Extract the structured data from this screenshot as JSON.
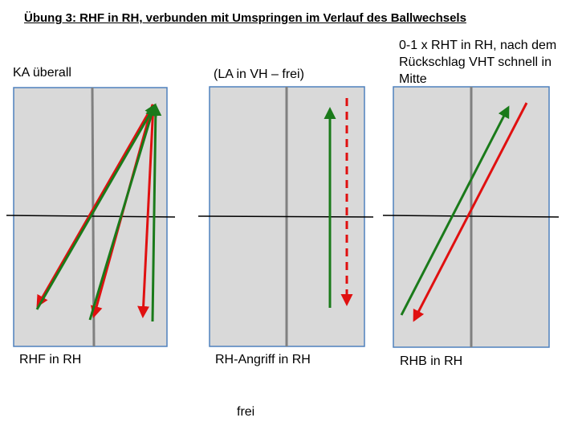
{
  "title": "Übung 3: RHF in RH, verbunden mit Umspringen im Verlauf des Ballwechsels",
  "panels": [
    {
      "top_label": "KA überall",
      "bottom_label": "RHF in RH"
    },
    {
      "top_label": "(LA in VH – frei)",
      "bottom_label": "RH-Angriff in RH"
    },
    {
      "top_label": "0-1 x RHT in RH, nach dem Rückschlag VHT schnell in Mitte",
      "bottom_label": "RHB in RH"
    }
  ],
  "footer": "frei",
  "colors": {
    "table_fill": "#d9d9d9",
    "table_border": "#4f81bd",
    "center_line": "#808080",
    "net": "#000000",
    "green_arrow": "#1a7a1a",
    "red_arrow": "#e01010"
  }
}
